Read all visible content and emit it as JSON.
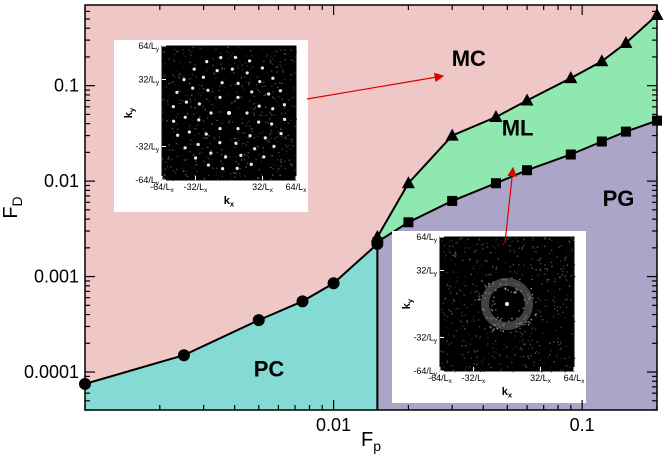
{
  "chart_data": {
    "type": "scatter",
    "xscale": "log",
    "yscale": "log",
    "xlim": [
      0.001,
      0.2
    ],
    "ylim": [
      4e-05,
      0.7
    ],
    "xlabel": "F",
    "xlabel_sub": "p",
    "ylabel": "F",
    "ylabel_sub": "D",
    "x_ticks": [
      0.01,
      0.1
    ],
    "x_tick_labels": [
      "0.01",
      "0.1"
    ],
    "y_ticks": [
      0.0001,
      0.001,
      0.01,
      0.1
    ],
    "y_tick_labels": [
      "0.0001",
      "0.001",
      "0.01",
      "0.1"
    ],
    "colors": {
      "MC": "#f0c7c7",
      "ML": "#8ee8b0",
      "PG": "#aba6c8",
      "PC": "#84dbd3"
    },
    "series": [
      {
        "marker": "circle",
        "x": [
          0.001,
          0.0025,
          0.005,
          0.0075,
          0.01,
          0.015
        ],
        "y": [
          7.5e-05,
          0.00015,
          0.00035,
          0.00055,
          0.00085,
          0.0022
        ]
      },
      {
        "marker": "square",
        "x": [
          0.015,
          0.02,
          0.03,
          0.045,
          0.06,
          0.09,
          0.12,
          0.15,
          0.2
        ],
        "y": [
          0.0023,
          0.0037,
          0.0062,
          0.0095,
          0.013,
          0.019,
          0.026,
          0.033,
          0.043
        ]
      },
      {
        "marker": "triangle",
        "x": [
          0.015,
          0.02,
          0.03,
          0.045,
          0.06,
          0.09,
          0.12,
          0.15,
          0.2
        ],
        "y": [
          0.0026,
          0.0095,
          0.03,
          0.047,
          0.07,
          0.12,
          0.18,
          0.28,
          0.55
        ]
      }
    ],
    "boundary_x": 0.015,
    "regions": [
      {
        "name": "MC",
        "label_x": 0.035,
        "label_y": 0.16
      },
      {
        "name": "ML",
        "label_x": 0.055,
        "label_y": 0.03
      },
      {
        "name": "PG",
        "label_x": 0.14,
        "label_y": 0.0055
      },
      {
        "name": "PC",
        "label_x": 0.0055,
        "label_y": 9e-05
      }
    ],
    "insets": [
      {
        "name": "MC",
        "xticklabels": [
          "-64/L",
          "-32/L",
          "32/L",
          "64/L"
        ],
        "xtick_sub": "x",
        "yticklabels": [
          "64/L",
          "32/L",
          "-32/L",
          "-64/L"
        ],
        "ytick_sub": "y",
        "xlabel": "k",
        "xlabel_sub": "x",
        "ylabel": "k",
        "ylabel_sub": "y",
        "pattern": "rings"
      },
      {
        "name": "PG",
        "xticklabels": [
          "-64/L",
          "-32/L",
          "32/L",
          "64/L"
        ],
        "xtick_sub": "x",
        "yticklabels": [
          "64/L",
          "32/L",
          "-32/L",
          "-64/L"
        ],
        "ytick_sub": "y",
        "xlabel": "k",
        "xlabel_sub": "x",
        "ylabel": "k",
        "ylabel_sub": "y",
        "pattern": "halo"
      }
    ]
  }
}
